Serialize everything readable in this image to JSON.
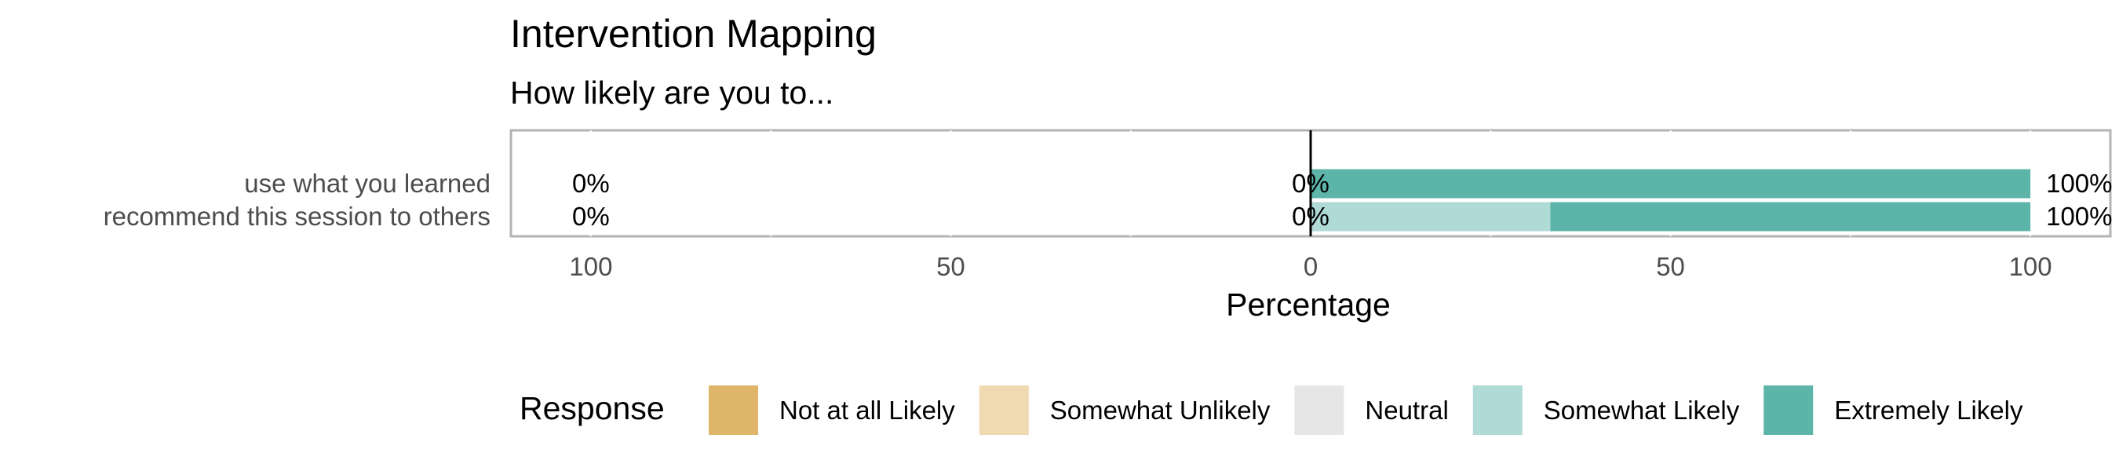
{
  "chart_data": {
    "type": "bar",
    "orientation": "horizontal",
    "stacking": "diverging",
    "title": "Intervention Mapping",
    "subtitle": "How likely are you to...",
    "xlabel": "Percentage",
    "ylabel": "",
    "xlim": [
      -100,
      100
    ],
    "x_ticks": [
      -100,
      -50,
      0,
      50,
      100
    ],
    "x_tick_labels": [
      "100",
      "50",
      "0",
      "50",
      "100"
    ],
    "grid": true,
    "categories": [
      "use what you learned",
      "recommend this session to others"
    ],
    "series": [
      {
        "name": "Not at all Likely",
        "color": "#dfb56a",
        "values": [
          0,
          0
        ]
      },
      {
        "name": "Somewhat Unlikely",
        "color": "#efdab2",
        "values": [
          0,
          0
        ]
      },
      {
        "name": "Neutral",
        "color": "#e6e6e6",
        "values": [
          0,
          0
        ]
      },
      {
        "name": "Somewhat Likely",
        "color": "#afdad6",
        "values": [
          0,
          33.3
        ]
      },
      {
        "name": "Extremely Likely",
        "color": "#5db5aa",
        "values": [
          100,
          66.7
        ]
      }
    ],
    "data_labels": {
      "negative": [
        "0%",
        "0%"
      ],
      "neutral": [
        "0%",
        "0%"
      ],
      "positive": [
        "100%",
        "100%"
      ]
    },
    "legend_title": "Response",
    "legend_position": "bottom"
  }
}
